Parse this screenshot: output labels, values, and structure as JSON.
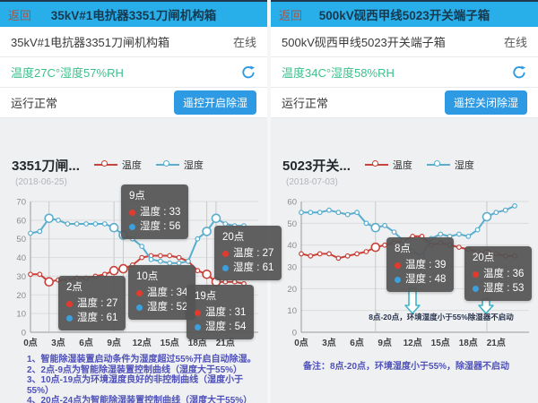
{
  "theme": {
    "header_bg": "#28aee8",
    "header_title": "#17394f",
    "back_color": "#a2574c",
    "button_bg": "#2e9ae3",
    "reading_color": "#3ec08e",
    "online_color": "#5a5a5a",
    "footnote_color": "#4f51b8",
    "chart_bg": "#eef0f2"
  },
  "panels": [
    {
      "appbar": {
        "back": "返回",
        "title": "35kV#1电抗器3351刀闸机构箱"
      },
      "device": {
        "name": "35kV#1电抗器3351刀闸机构箱",
        "status": "在线"
      },
      "reading": "温度27C°湿度57%RH",
      "operation": {
        "status": "运行正常",
        "button": "遥控开启除湿"
      },
      "footnotes": [
        "1、智能除湿装置启动条件为湿度超过55%开启自动除湿。",
        "2、2点-9点为智能除湿装置控制曲线（湿度大于55%）",
        "3、10点-19点为环境湿度良好的非控制曲线（湿度小于55%）",
        "4、20点-24点为智能除湿装置控制曲线（湿度大于55%）"
      ]
    },
    {
      "appbar": {
        "back": "返回",
        "title": "500kV砚西甲线5023开关端子箱"
      },
      "device": {
        "name": "500kV砚西甲线5023开关端子箱",
        "status": "在线"
      },
      "reading": "温度34C°湿度58%RH",
      "operation": {
        "status": "运行正常",
        "button": "遥控关闭除湿"
      },
      "footnotes": [
        "备注：8点-20点，环境湿度小于55%，除湿器不启动"
      ]
    }
  ],
  "chart_data": [
    {
      "type": "line",
      "title": "3351刀闸...",
      "subtitle": "(2018-06-25)",
      "xlabel": "",
      "ylabel": "",
      "ylim": [
        0,
        70
      ],
      "ytick_interval": 10,
      "grid": true,
      "legend_position": "top",
      "x_tick_labels": [
        "0点",
        "3点",
        "6点",
        "9点",
        "12点",
        "15点",
        "18点",
        "21点"
      ],
      "series": [
        {
          "name": "温度",
          "color": "#c8413a",
          "values": [
            31,
            31,
            27,
            28,
            28,
            29,
            29,
            30,
            31,
            33,
            34,
            36,
            40,
            41,
            41,
            41,
            40,
            38,
            33,
            31,
            27,
            27,
            27,
            26
          ]
        },
        {
          "name": "湿度",
          "color": "#5aadcd",
          "values": [
            53,
            54,
            61,
            60,
            58,
            58,
            58,
            58,
            58,
            56,
            52,
            50,
            46,
            39,
            38,
            37,
            37,
            38,
            50,
            54,
            61,
            58,
            57,
            57
          ]
        }
      ],
      "tooltip_marker_colors": [
        "#e23b2e",
        "#3ba0dd"
      ],
      "tooltips": [
        {
          "hour": 9,
          "label": "9点",
          "values": [
            33,
            56
          ],
          "left": 135,
          "top": 74
        },
        {
          "hour": 20,
          "label": "20点",
          "values": [
            27,
            61
          ],
          "left": 239,
          "top": 120
        },
        {
          "hour": 2,
          "label": "2点",
          "values": [
            27,
            61
          ],
          "left": 65,
          "top": 176
        },
        {
          "hour": 10,
          "label": "10点",
          "values": [
            34,
            52
          ],
          "left": 143,
          "top": 164
        },
        {
          "hour": 19,
          "label": "19点",
          "values": [
            31,
            54
          ],
          "left": 208,
          "top": 186
        }
      ]
    },
    {
      "type": "line",
      "title": "5023开关...",
      "subtitle": "(2018-07-03)",
      "xlabel": "",
      "ylabel": "",
      "ylim": [
        0,
        60
      ],
      "ytick_interval": 10,
      "grid": true,
      "legend_position": "top",
      "x_tick_labels": [
        "0点",
        "3点",
        "6点",
        "9点",
        "12点",
        "15点",
        "18点",
        "21点"
      ],
      "series": [
        {
          "name": "温度",
          "color": "#c8413a",
          "values": [
            36,
            35,
            36,
            36,
            34,
            35,
            36,
            37,
            39,
            40,
            41,
            42,
            44,
            44,
            40,
            41,
            40,
            39,
            38,
            37,
            36,
            36,
            35,
            35
          ]
        },
        {
          "name": "湿度",
          "color": "#5aadcd",
          "values": [
            55,
            55,
            55,
            56,
            55,
            54,
            55,
            50,
            48,
            49,
            46,
            42,
            37,
            35,
            43,
            45,
            44,
            45,
            44,
            47,
            53,
            55,
            56,
            58
          ]
        }
      ],
      "tooltip_marker_colors": [
        "#e23b2e",
        "#3ba0dd"
      ],
      "tooltips": [
        {
          "hour": 8,
          "label": "8点",
          "values": [
            39,
            48
          ],
          "left": 129,
          "top": 133
        },
        {
          "hour": 20,
          "label": "20点",
          "values": [
            36,
            53
          ],
          "left": 216,
          "top": 143
        }
      ],
      "annotation": {
        "text": "8点-20点，环境湿度小于55%除湿器不启动",
        "x": 190,
        "y": 143
      },
      "arrows": [
        {
          "x": 158,
          "y1": 108,
          "y2": 136
        },
        {
          "x": 240,
          "y1": 120,
          "y2": 136
        }
      ],
      "arrow_color": "#3fb6c9"
    }
  ]
}
